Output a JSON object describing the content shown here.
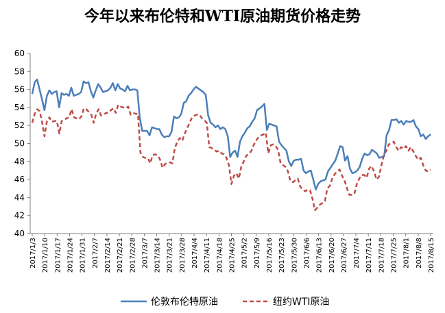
{
  "chart_data": {
    "type": "line",
    "title": "今年以来布伦特和WTI原油期货价格走势",
    "xlabel": "",
    "ylabel": "",
    "ylim": [
      40,
      60
    ],
    "yticks": [
      "40",
      "42",
      "44",
      "46",
      "48",
      "50",
      "52",
      "54",
      "56",
      "58",
      "60"
    ],
    "x_tick_labels": [
      "2017/1/3",
      "2017/1/10",
      "2017/1/17",
      "2017/1/24",
      "2017/1/31",
      "2017/2/7",
      "2017/2/14",
      "2017/2/21",
      "2017/2/28",
      "2017/3/7",
      "2017/3/14",
      "2017/3/21",
      "2017/3/28",
      "2017/4/4",
      "2017/4/11",
      "2017/4/18",
      "2017/4/25",
      "2017/5/2",
      "2017/5/9",
      "2017/5/16",
      "2017/5/23",
      "2017/5/30",
      "2017/6/6",
      "2017/6/13",
      "2017/6/20",
      "2017/6/27",
      "2017/7/4",
      "2017/7/11",
      "2017/7/18",
      "2017/7/25",
      "2017/8/1",
      "2017/8/8",
      "2017/8/15"
    ],
    "grid": false,
    "legend_position": "bottom",
    "series": [
      {
        "name": "伦敦布伦特原油",
        "color": "#4a7ebb",
        "style": "solid",
        "values": [
          55.5,
          56.8,
          57.1,
          56.0,
          54.9,
          53.7,
          55.3,
          55.9,
          55.5,
          55.7,
          55.8,
          54.0,
          55.6,
          55.4,
          55.5,
          55.3,
          56.2,
          55.3,
          55.4,
          55.5,
          55.7,
          56.9,
          56.7,
          56.8,
          55.8,
          55.1,
          55.9,
          56.6,
          56.2,
          55.7,
          55.8,
          55.9,
          56.2,
          56.7,
          55.9,
          56.6,
          56.1,
          56.0,
          55.8,
          56.4,
          55.9,
          56.0,
          56.0,
          55.9,
          52.9,
          51.4,
          51.4,
          51.4,
          50.9,
          51.8,
          51.7,
          51.6,
          51.6,
          51.0,
          50.7,
          50.8,
          50.8,
          51.3,
          53.0,
          52.8,
          52.9,
          53.3,
          54.5,
          54.7,
          55.3,
          55.6,
          56.0,
          56.3,
          56.1,
          55.9,
          55.7,
          55.4,
          53.1,
          52.3,
          52.1,
          51.8,
          52.0,
          51.6,
          51.8,
          51.6,
          50.8,
          48.5,
          49.0,
          49.2,
          48.5,
          50.2,
          50.8,
          51.2,
          51.7,
          51.9,
          52.4,
          52.8,
          53.7,
          53.9,
          54.1,
          54.4,
          51.5,
          52.2,
          52.1,
          52.0,
          51.9,
          50.2,
          49.8,
          49.5,
          49.2,
          48.0,
          47.5,
          48.1,
          48.2,
          48.2,
          48.3,
          47.0,
          46.7,
          46.9,
          47.0,
          46.0,
          44.9,
          45.5,
          45.8,
          45.9,
          46.0,
          46.9,
          47.3,
          47.7,
          48.1,
          48.9,
          49.7,
          49.6,
          48.1,
          48.6,
          47.2,
          46.7,
          46.8,
          47.0,
          47.4,
          48.3,
          48.9,
          48.7,
          48.8,
          49.3,
          49.1,
          48.9,
          48.4,
          48.5,
          48.6,
          50.9,
          51.5,
          52.6,
          52.6,
          52.7,
          52.3,
          52.5,
          52.1,
          52.5,
          52.4,
          52.4,
          52.6,
          51.9,
          51.6,
          50.8,
          51.0,
          50.5,
          50.8,
          51.0
        ]
      },
      {
        "name": "纽约WTI原油",
        "color": "#be4b48",
        "style": "dashed",
        "values": [
          52.3,
          53.3,
          53.8,
          53.6,
          52.4,
          50.8,
          52.5,
          52.9,
          52.4,
          52.5,
          52.5,
          51.1,
          52.5,
          52.6,
          52.8,
          52.9,
          53.8,
          52.9,
          52.8,
          52.7,
          53.0,
          53.9,
          53.8,
          53.5,
          53.2,
          52.3,
          53.3,
          53.8,
          53.1,
          53.2,
          53.4,
          53.4,
          53.7,
          53.9,
          53.4,
          54.3,
          54.1,
          54.0,
          53.9,
          54.1,
          53.2,
          53.4,
          53.3,
          53.3,
          49.0,
          48.5,
          48.4,
          48.4,
          47.8,
          48.7,
          48.8,
          48.7,
          48.2,
          47.3,
          47.7,
          47.9,
          47.9,
          47.8,
          49.5,
          50.2,
          50.6,
          50.3,
          51.1,
          51.7,
          52.3,
          52.9,
          53.1,
          53.2,
          53.2,
          52.8,
          52.6,
          52.3,
          49.6,
          49.5,
          49.3,
          49.1,
          49.2,
          48.9,
          48.8,
          48.4,
          47.6,
          45.5,
          46.4,
          46.7,
          46.1,
          47.4,
          48.0,
          48.6,
          48.9,
          49.1,
          49.8,
          50.3,
          50.7,
          50.9,
          51.0,
          51.2,
          48.9,
          49.8,
          49.9,
          49.7,
          49.3,
          47.8,
          47.6,
          47.4,
          46.9,
          45.8,
          45.7,
          45.9,
          46.1,
          45.2,
          44.9,
          44.7,
          44.9,
          44.8,
          43.8,
          42.6,
          42.9,
          43.2,
          43.4,
          43.6,
          45.0,
          45.3,
          46.1,
          46.6,
          46.9,
          47.1,
          46.4,
          45.9,
          45.0,
          44.3,
          44.3,
          44.4,
          45.5,
          46.1,
          46.5,
          46.5,
          46.2,
          47.2,
          47.5,
          46.9,
          46.0,
          46.3,
          47.6,
          48.7,
          49.2,
          49.9,
          50.0,
          50.2,
          49.6,
          49.2,
          49.6,
          49.4,
          49.7,
          49.2,
          49.6,
          49.1,
          48.6,
          48.2,
          48.4,
          47.6,
          47.0,
          46.9,
          47.1
        ]
      }
    ]
  }
}
